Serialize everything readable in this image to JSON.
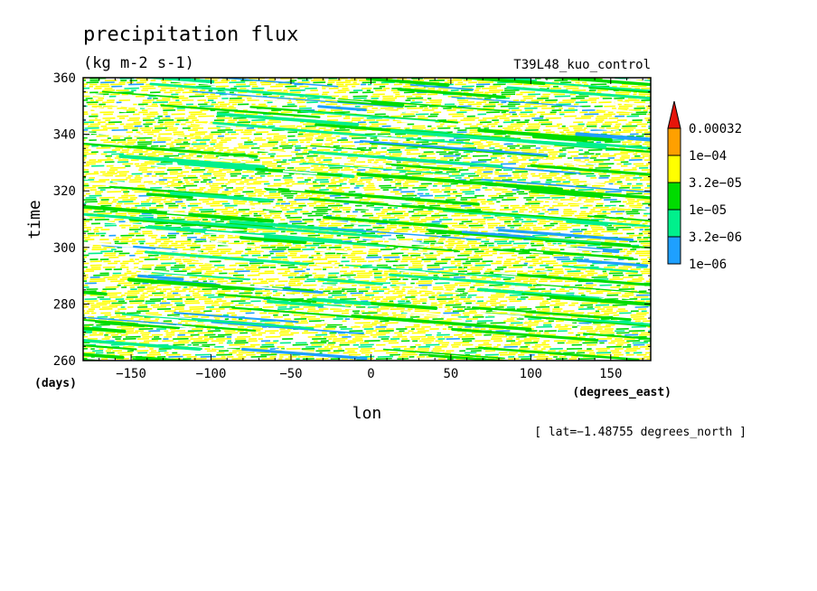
{
  "chart_data": {
    "type": "heatmap",
    "title": "precipitation flux",
    "units": "(kg m-2 s-1)",
    "experiment": "T39L48_kuo_control",
    "xlabel": "lon",
    "xunits": "(degrees_east)",
    "ylabel": "time",
    "yunits": "(days)",
    "xlim": [
      -180,
      175
    ],
    "ylim": [
      260,
      360
    ],
    "xticks": [
      -150,
      -100,
      -50,
      0,
      50,
      100,
      150
    ],
    "yticks": [
      260,
      280,
      300,
      320,
      340,
      360
    ],
    "xtick_labels": [
      "−150",
      "−100",
      "−50",
      "0",
      "50",
      "100",
      "150"
    ],
    "ytick_labels": [
      "260",
      "280",
      "300",
      "320",
      "340",
      "360"
    ],
    "footnote": "[ lat=−1.48755 degrees_north ]",
    "colorbar": {
      "levels": [
        1e-06,
        3.2e-06,
        1e-05,
        3.2e-05,
        0.0001,
        0.00032
      ],
      "labels": [
        "1e−06",
        "3.2e−06",
        "1e−05",
        "3.2e−05",
        "1e−04",
        "0.00032"
      ],
      "colors": [
        "#1ea0ff",
        "#00f08c",
        "#00dc00",
        "#ffff00",
        "#ffa000",
        "#e6140a"
      ]
    },
    "colors": {
      "band1": "#1ea0ff",
      "band2": "#00f08c",
      "band3": "#00dc00",
      "band4": "#ffff00",
      "band5": "#ffa000",
      "extend": "#e6140a",
      "frame": "#000000"
    }
  }
}
